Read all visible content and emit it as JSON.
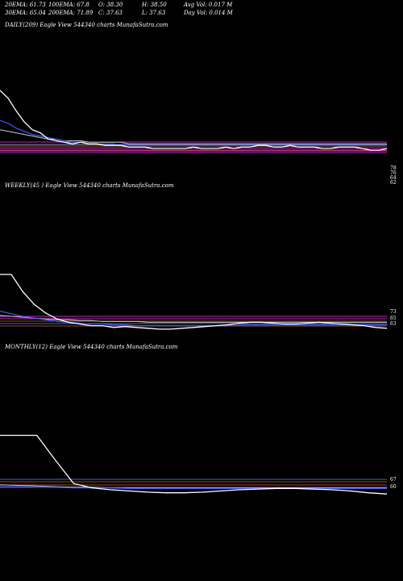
{
  "header": {
    "row1": [
      "20EMA: 61.73",
      "100EMA: 67.8",
      "O: 38.30",
      "H: 38.50",
      "Avg Vol: 0.017  M"
    ],
    "row2": [
      "30EMA: 65.04",
      "200EMA: 71.89",
      "C: 37.63",
      "L: 37.63",
      "Day Vol: 0.014  M"
    ]
  },
  "panels": {
    "daily": {
      "title": "DAILY(209) Eagle   View  544340  charts MunafaSutra.com",
      "levels": [
        "78",
        "76",
        "64",
        "62"
      ]
    },
    "weekly": {
      "title": "WEEKLY(45                       ) Eagle   View  544340  charts MunafaSutra.com",
      "levels": [
        "73",
        "65",
        "63"
      ]
    },
    "monthly": {
      "title": "MONTHLY(12) Eagle   View  544340  charts MunafaSutra.com",
      "levels": [
        "67",
        "60"
      ]
    }
  },
  "colors": {
    "price": "#ffffff",
    "ema_fast": "#3a5bff",
    "ema_slow": "#cccccc",
    "level_magenta": "#ff33ff",
    "level_orange": "#cc6633",
    "level_blue": "#6688ff"
  },
  "chart_data": [
    {
      "type": "line",
      "panel": "daily",
      "price": [
        95,
        90,
        82,
        75,
        70,
        68,
        64,
        63,
        62,
        61,
        62,
        61,
        61,
        60,
        60,
        60,
        59,
        59,
        59,
        58,
        58,
        58,
        58,
        58,
        59,
        58,
        58,
        58,
        59,
        58,
        59,
        59,
        60,
        60,
        59,
        59,
        60,
        59,
        59,
        59,
        58,
        58,
        59,
        59,
        59,
        58,
        57,
        57,
        58
      ],
      "ema_fast": [
        76,
        74,
        71,
        69,
        67,
        66,
        65,
        64,
        63,
        62,
        62,
        61,
        61,
        61,
        61,
        60,
        60,
        60,
        60,
        60,
        60,
        60,
        60,
        60,
        60,
        60,
        60,
        60,
        60,
        60,
        60,
        60,
        60,
        60,
        60,
        60,
        60,
        60,
        60,
        60,
        60,
        60,
        60,
        60,
        60,
        60,
        60,
        60,
        60
      ],
      "ema_slow": [
        70,
        69,
        68,
        67,
        66,
        65,
        64,
        64,
        63,
        63,
        63,
        62,
        62,
        62,
        62,
        62,
        61,
        61,
        61,
        61,
        61,
        61,
        61,
        61,
        61,
        61,
        61,
        61,
        61,
        61,
        61,
        61,
        61,
        61,
        61,
        61,
        61,
        61,
        61,
        61,
        61,
        61,
        61,
        61,
        61,
        61,
        61,
        61,
        61
      ]
    },
    {
      "type": "line",
      "panel": "weekly",
      "price": [
        120,
        120,
        100,
        85,
        75,
        68,
        64,
        62,
        60,
        60,
        58,
        59,
        58,
        57,
        56,
        56,
        57,
        58,
        59,
        60,
        61,
        63,
        64,
        64,
        63,
        62,
        62,
        63,
        64,
        63,
        62,
        61,
        60,
        58,
        57
      ],
      "ema_fast": [
        77,
        74,
        71,
        69,
        67,
        65,
        64,
        63,
        62,
        62,
        61,
        61,
        60,
        60,
        60,
        60,
        60,
        60,
        60,
        60,
        60,
        61,
        61,
        61,
        61,
        61,
        61,
        61,
        61,
        61,
        61,
        61,
        61,
        61,
        61
      ],
      "ema_slow": [
        72,
        71,
        70,
        69,
        68,
        67,
        67,
        66,
        66,
        65,
        65,
        65,
        65,
        64,
        64,
        64,
        64,
        64,
        64,
        64,
        64,
        64,
        64,
        64,
        64,
        64,
        64,
        64,
        64,
        64,
        64,
        64,
        64,
        64,
        64
      ]
    },
    {
      "type": "line",
      "panel": "monthly",
      "price": [
        150,
        150,
        150,
        110,
        72,
        65,
        62,
        60,
        58,
        57,
        57,
        58,
        60,
        62,
        63,
        64,
        64,
        63,
        62,
        60,
        57,
        55
      ],
      "ema_fast": [
        67,
        67,
        66,
        66,
        65,
        65,
        65,
        64,
        64,
        64,
        64,
        64,
        64,
        64,
        64,
        64,
        64,
        64,
        64,
        64,
        64,
        64
      ],
      "ema_slow": [
        70,
        69,
        68,
        67,
        66,
        66,
        65,
        65,
        65,
        65,
        65,
        65,
        65,
        65,
        65,
        65,
        65,
        65,
        65,
        65,
        65,
        65
      ]
    }
  ]
}
